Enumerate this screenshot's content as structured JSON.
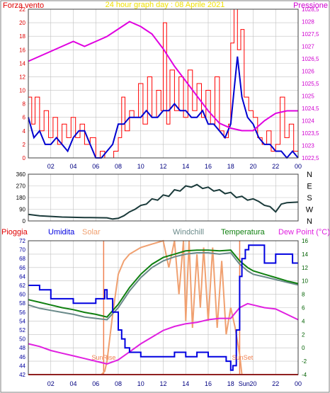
{
  "colors": {
    "background": "#ffffff",
    "plot_bg": "#ffffff",
    "grid": "#c0c0c0",
    "axis_left": "#e00000",
    "axis_right": "#d000d0",
    "wind_gust": "#ff0000",
    "wind_avg": "#0000d0",
    "pressure": "#e000e0",
    "wind_dir": "#1a3a3a",
    "rain": "#e00000",
    "humidity": "#0000e0",
    "solar": "#f0a070",
    "windchill": "#6a8a8a",
    "temperature": "#108010",
    "dew_point": "#e020e0",
    "sun_marker": "#f08050",
    "title": "#f0e000"
  },
  "chart_data": [
    {
      "type": "line",
      "title": "24 hour graph day : 08 Aprile 2021",
      "ylabel_left": "Forza vento",
      "ylabel_right": "Pressione",
      "x_ticks": [
        "02",
        "04",
        "06",
        "08",
        "10",
        "12",
        "14",
        "16",
        "18",
        "20",
        "22",
        "00"
      ],
      "x_range": [
        0,
        24
      ],
      "ylim_left": [
        0,
        22
      ],
      "yticks_left": [
        0,
        2,
        4,
        6,
        8,
        10,
        12,
        14,
        16,
        18,
        20,
        22
      ],
      "ylim_right": [
        1022.5,
        1028.5
      ],
      "yticks_right": [
        "1022,5",
        "1023",
        "1023,5",
        "1024",
        "1024,5",
        "1025",
        "1025,5",
        "1026",
        "1026,5",
        "1027",
        "1027,5",
        "1028",
        "1028,5"
      ],
      "grid": true,
      "series": [
        {
          "axis": "left",
          "style": "step",
          "x": [
            0,
            0.3,
            0.6,
            1,
            1.4,
            1.8,
            2.2,
            2.6,
            3,
            3.4,
            3.8,
            4.2,
            4.6,
            5,
            5.5,
            6,
            6.4,
            6.8,
            7.2,
            7.6,
            8,
            8.3,
            8.6,
            9,
            9.4,
            9.8,
            10.2,
            10.6,
            11,
            11.4,
            11.8,
            12,
            12.3,
            12.6,
            13,
            13.4,
            13.8,
            14.2,
            14.6,
            15,
            15.4,
            15.8,
            16.2,
            16.6,
            17,
            17.4,
            17.8,
            18,
            18.3,
            18.6,
            18.9,
            19.2,
            19.6,
            20,
            20.4,
            20.8,
            21.2,
            21.6,
            22,
            22.4,
            22.8,
            23.2,
            23.6,
            24
          ],
          "values": [
            9,
            5,
            9,
            4,
            7,
            3,
            6,
            2,
            5,
            3,
            6,
            3,
            5,
            2,
            3,
            0,
            1,
            0,
            0,
            1,
            3,
            9,
            4,
            7,
            6,
            11,
            5,
            12,
            6,
            10,
            7,
            20,
            5,
            13,
            7,
            12,
            6,
            13,
            7,
            11,
            6,
            10,
            5,
            12,
            4,
            3,
            5,
            17,
            22,
            16,
            19,
            9,
            7,
            6,
            3,
            2,
            4,
            1,
            2,
            9,
            3,
            5,
            1,
            2
          ]
        },
        {
          "axis": "left",
          "style": "line",
          "x": [
            0,
            0.5,
            1,
            1.5,
            2,
            2.5,
            3,
            3.5,
            4,
            4.5,
            5,
            5.5,
            6,
            6.5,
            7,
            7.5,
            8,
            8.5,
            9,
            9.5,
            10,
            10.5,
            11,
            11.5,
            12,
            12.5,
            13,
            13.5,
            14,
            14.5,
            15,
            15.5,
            16,
            16.5,
            17,
            17.5,
            18,
            18.3,
            18.6,
            19,
            19.5,
            20,
            20.5,
            21,
            21.5,
            22,
            22.5,
            23,
            23.5,
            24
          ],
          "values": [
            6,
            3,
            4,
            2,
            2,
            3,
            2,
            1,
            3,
            4,
            4,
            2,
            0,
            0,
            1,
            2,
            5,
            5,
            6,
            6,
            6,
            7,
            6,
            6,
            7,
            7,
            8,
            7,
            7,
            6,
            6,
            7,
            5,
            5,
            4,
            3,
            5,
            10,
            15,
            9,
            6,
            5,
            3,
            2,
            2,
            1,
            1,
            0,
            1,
            0
          ]
        },
        {
          "axis": "right",
          "style": "line",
          "x": [
            0,
            1,
            2,
            3,
            4,
            5,
            6,
            7,
            8,
            9,
            10,
            11,
            12,
            13,
            14,
            15,
            16,
            17,
            18,
            19,
            20,
            21,
            22,
            23,
            24
          ],
          "values": [
            1026.4,
            1026.6,
            1026.8,
            1027.0,
            1027.2,
            1027.0,
            1027.2,
            1027.4,
            1027.7,
            1028.0,
            1027.8,
            1027.5,
            1026.9,
            1026.2,
            1025.6,
            1025.0,
            1024.4,
            1023.9,
            1023.7,
            1023.6,
            1023.6,
            1024.0,
            1024.3,
            1024.4,
            1024.4
          ]
        }
      ]
    },
    {
      "type": "line",
      "x_range": [
        0,
        24
      ],
      "ylim": [
        0,
        360
      ],
      "yticks": [
        0,
        90,
        180,
        270,
        360
      ],
      "ylabel_right": [
        "N",
        "W",
        "S",
        "E",
        "N"
      ],
      "grid": true,
      "series": [
        {
          "x": [
            0,
            1,
            2,
            3,
            4,
            5,
            6,
            7,
            7.5,
            8,
            8.5,
            9,
            9.5,
            10,
            10.5,
            11,
            11.5,
            12,
            12.5,
            13,
            13.5,
            14,
            14.5,
            15,
            15.5,
            16,
            16.5,
            17,
            17.5,
            18,
            18.5,
            19,
            19.5,
            20,
            20.5,
            21,
            21.5,
            22,
            22.5,
            23,
            24
          ],
          "values": [
            50,
            40,
            35,
            30,
            28,
            26,
            25,
            24,
            15,
            20,
            40,
            70,
            90,
            120,
            130,
            170,
            160,
            200,
            190,
            240,
            230,
            270,
            260,
            280,
            250,
            260,
            230,
            240,
            210,
            220,
            180,
            190,
            160,
            170,
            150,
            120,
            110,
            70,
            130,
            140,
            145
          ]
        }
      ]
    },
    {
      "type": "line",
      "legend": [
        "Pioggia",
        "Umidita",
        "Solar",
        "Windchill",
        "Temperatura",
        "Dew Point (°C)"
      ],
      "x_ticks": [
        "02",
        "04",
        "06",
        "08",
        "10",
        "12",
        "14",
        "16",
        "18",
        "Sun",
        "20",
        "22",
        "00"
      ],
      "x_range": [
        0,
        24
      ],
      "ylim_left": [
        42,
        72
      ],
      "yticks_left": [
        42,
        44,
        46,
        48,
        50,
        52,
        54,
        56,
        58,
        60,
        62,
        64,
        66,
        68,
        70,
        72
      ],
      "ylim_right": [
        -4,
        16
      ],
      "yticks_right": [
        -4,
        -2,
        0,
        2,
        4,
        6,
        8,
        10,
        12,
        14,
        16
      ],
      "annotations": [
        "SunRise",
        "SunSet"
      ],
      "sunrise_x": 6.7,
      "sunset_x": 18.8,
      "grid": true,
      "series": [
        {
          "name": "Umidita",
          "axis": "left",
          "style": "step",
          "x": [
            0,
            1,
            2,
            3,
            4,
            5,
            6,
            6.8,
            7,
            7.5,
            8,
            8.3,
            8.6,
            9,
            9.5,
            10,
            11,
            12,
            13,
            14,
            15,
            16,
            17,
            17.6,
            18,
            18.2,
            18.5,
            18.8,
            19,
            19.3,
            19.6,
            20,
            21,
            22,
            23,
            23.5,
            24
          ],
          "values": [
            62,
            61,
            59,
            59,
            58,
            58,
            59,
            61,
            59,
            56,
            52,
            50,
            48,
            47,
            47,
            46,
            46,
            46,
            47,
            46,
            47,
            46,
            46,
            45,
            43,
            44,
            52,
            64,
            68,
            70,
            71,
            71,
            67,
            69,
            69,
            67,
            67
          ]
        },
        {
          "name": "Temperatura",
          "axis": "right",
          "style": "line",
          "x": [
            0,
            1,
            2,
            3,
            4,
            5,
            6,
            7,
            8,
            9,
            10,
            11,
            12,
            13,
            14,
            15,
            16,
            17,
            18,
            18.8,
            19.5,
            20,
            21,
            22,
            23,
            24
          ],
          "values": [
            7.2,
            6.8,
            6.4,
            6,
            5.7,
            5.3,
            5,
            4.6,
            6.5,
            9,
            11,
            12.5,
            13.5,
            14,
            14.5,
            14.6,
            14.6,
            14.5,
            14.6,
            13,
            12,
            11.5,
            11,
            10.5,
            10,
            9.6
          ]
        },
        {
          "name": "Windchill",
          "axis": "right",
          "style": "line",
          "x": [
            0,
            1,
            2,
            3,
            4,
            5,
            6,
            7,
            8,
            9,
            10,
            11,
            12,
            13,
            14,
            15,
            16,
            17,
            18,
            18.8,
            19.5,
            20,
            21,
            22,
            23,
            24
          ],
          "values": [
            6.4,
            5.9,
            5.6,
            5.3,
            5,
            4.6,
            4.4,
            4.2,
            6,
            8.5,
            10.5,
            12,
            13,
            13.6,
            14,
            14.2,
            14.2,
            14,
            14.2,
            12.5,
            11.5,
            11,
            10.6,
            10.2,
            9.8,
            9.4
          ]
        },
        {
          "name": "Solar",
          "axis": "right",
          "style": "line",
          "x": [
            0,
            6.5,
            6.8,
            7,
            7.5,
            8,
            8.5,
            9,
            10,
            11,
            12,
            12.5,
            13,
            13.4,
            13.8,
            14,
            14.3,
            14.6,
            15,
            15.3,
            15.6,
            16,
            16.4,
            16.8,
            17.2,
            17.6,
            18,
            18.4,
            18.8,
            19,
            24
          ],
          "values": [
            -4,
            -4,
            -3.5,
            -2,
            5,
            11,
            13,
            14,
            15,
            15.5,
            16,
            12,
            16,
            8,
            16,
            4,
            16,
            3,
            14,
            6,
            15,
            4,
            15,
            3,
            13,
            2,
            6,
            3,
            -1,
            -4,
            -4
          ]
        },
        {
          "name": "Dew Point (°C)",
          "axis": "right",
          "style": "line",
          "x": [
            0,
            1,
            2,
            3,
            4,
            5,
            6,
            7,
            8,
            9,
            10,
            11,
            12,
            13,
            14,
            15,
            16,
            17,
            18,
            18.8,
            19.5,
            20,
            21,
            22,
            23,
            24
          ],
          "values": [
            0.6,
            0.2,
            -0.4,
            -0.8,
            -1.2,
            -1.6,
            -2,
            -2.4,
            -1.8,
            -0.6,
            0.6,
            1.6,
            2.6,
            3.2,
            3.6,
            3.8,
            4.2,
            4.4,
            4.4,
            6,
            6.6,
            6.4,
            6,
            5.8,
            5,
            4.2
          ]
        },
        {
          "name": "Pioggia",
          "axis": "left",
          "style": "line",
          "x": [
            0,
            24
          ],
          "values": [
            42,
            42
          ]
        }
      ]
    }
  ]
}
